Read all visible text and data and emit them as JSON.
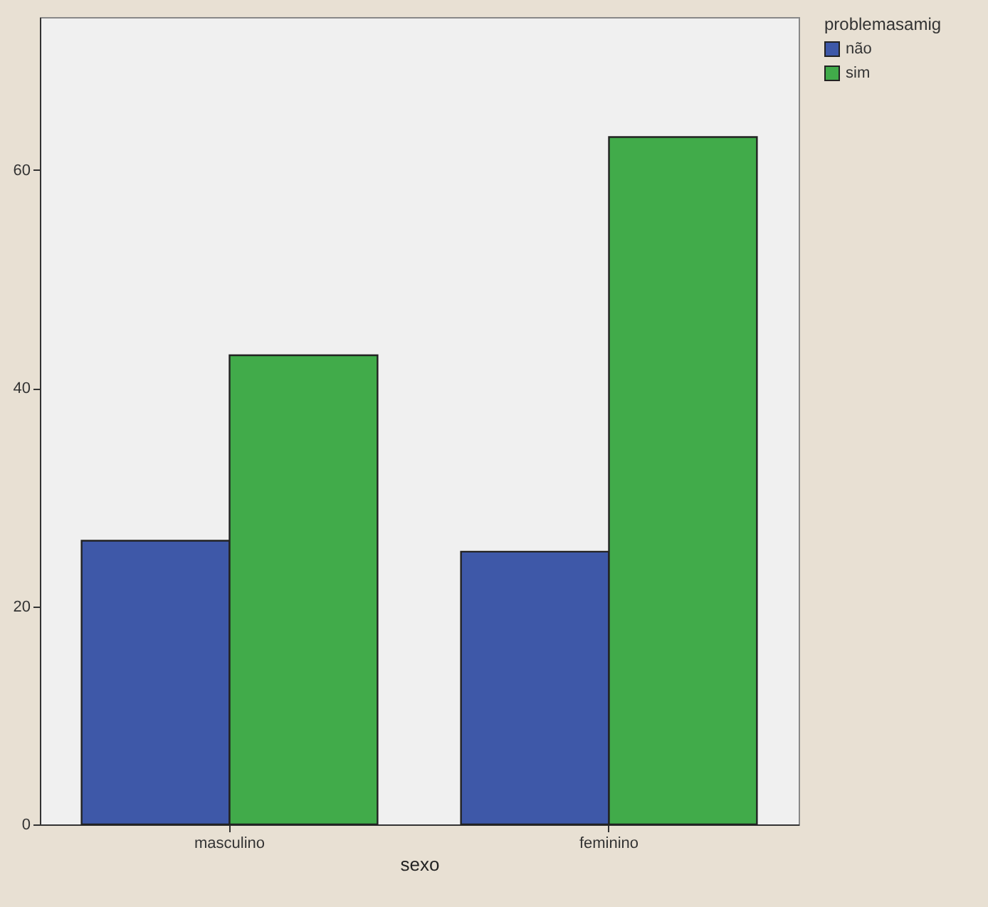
{
  "chart_data": {
    "type": "bar",
    "xlabel": "sexo",
    "legend_title": "problemasamig",
    "categories": [
      "masculino",
      "feminino"
    ],
    "series": [
      {
        "name": "não",
        "color": "#3e58a8",
        "values": [
          26,
          25
        ]
      },
      {
        "name": "sim",
        "color": "#41ab4a",
        "values": [
          43,
          63
        ]
      }
    ],
    "ylim": [
      0,
      74
    ],
    "yticks": [
      0,
      20,
      40,
      60
    ],
    "grid": false,
    "legend": "top right"
  }
}
